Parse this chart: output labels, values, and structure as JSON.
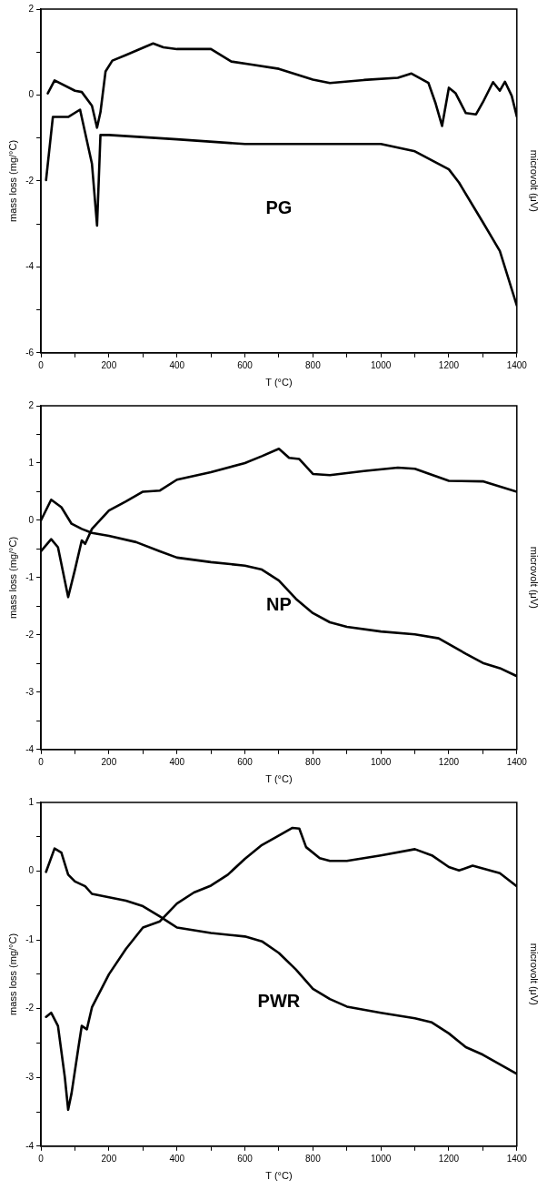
{
  "chart_data": [
    {
      "type": "line",
      "xlabel": "T (°C)",
      "ylabel": "mass loss (mg/°C)",
      "y2label": "microvolt (μV)",
      "annotations": [
        "PG"
      ],
      "xlim": [
        0,
        1400
      ],
      "ylim": [
        -6,
        2
      ],
      "xticks": [
        0,
        {
          "value": 100,
          "label": null
        },
        200,
        {
          "value": 300,
          "label": null
        },
        400,
        {
          "value": 500,
          "label": null
        },
        600,
        {
          "value": 700,
          "label": null
        },
        800,
        {
          "value": 900,
          "label": null
        },
        1000,
        {
          "value": 1100,
          "label": null
        },
        1200,
        {
          "value": 1300,
          "label": null
        },
        1400
      ],
      "yticks": [
        -6,
        {
          "value": -5,
          "label": null
        },
        -4,
        {
          "value": -3,
          "label": null
        },
        -2,
        {
          "value": -1,
          "label": null
        },
        0,
        {
          "value": 1,
          "label": null
        },
        2
      ],
      "grid": false,
      "legend": false,
      "marker": "none",
      "line_style": "solid",
      "series": [
        {
          "color": "#000000",
          "x": [
            20,
            40,
            100,
            120,
            150,
            165,
            175,
            190,
            210,
            250,
            300,
            330,
            360,
            400,
            500,
            560,
            620,
            700,
            800,
            850,
            950,
            1050,
            1090,
            1140,
            1160,
            1180,
            1200,
            1220,
            1250,
            1280,
            1300,
            1330,
            1350,
            1365,
            1385,
            1400
          ],
          "values": [
            0.04,
            0.34,
            0.1,
            0.07,
            -0.25,
            -0.76,
            -0.4,
            0.55,
            0.8,
            0.93,
            1.1,
            1.2,
            1.11,
            1.07,
            1.07,
            0.78,
            0.71,
            0.61,
            0.36,
            0.28,
            0.35,
            0.4,
            0.5,
            0.28,
            -0.17,
            -0.72,
            0.17,
            0.04,
            -0.42,
            -0.45,
            -0.17,
            0.3,
            0.1,
            0.31,
            -0.02,
            -0.5
          ]
        },
        {
          "color": "#000000",
          "x": [
            15,
            35,
            80,
            115,
            150,
            165,
            175,
            200,
            400,
            600,
            1000,
            1100,
            1200,
            1230,
            1300,
            1350,
            1400
          ],
          "values": [
            -1.98,
            -0.51,
            -0.51,
            -0.34,
            -1.6,
            -3.04,
            -0.93,
            -0.93,
            -1.03,
            -1.14,
            -1.14,
            -1.31,
            -1.73,
            -2.04,
            -2.96,
            -3.63,
            -4.9
          ]
        }
      ]
    },
    {
      "type": "line",
      "xlabel": "T (°C)",
      "ylabel": "mass loss (mg/°C)",
      "y2label": "microvolt (μV)",
      "annotations": [
        "NP"
      ],
      "xlim": [
        0,
        1400
      ],
      "ylim": [
        -4,
        2
      ],
      "xticks": [
        0,
        {
          "value": 100,
          "label": null
        },
        200,
        {
          "value": 300,
          "label": null
        },
        400,
        {
          "value": 500,
          "label": null
        },
        600,
        {
          "value": 700,
          "label": null
        },
        800,
        {
          "value": 900,
          "label": null
        },
        1000,
        {
          "value": 1100,
          "label": null
        },
        1200,
        {
          "value": 1300,
          "label": null
        },
        1400
      ],
      "yticks": [
        -4,
        {
          "value": -3.5,
          "label": null
        },
        -3,
        {
          "value": -2.5,
          "label": null
        },
        -2,
        {
          "value": -1.5,
          "label": null
        },
        -1,
        {
          "value": -0.5,
          "label": null
        },
        0,
        {
          "value": 0.5,
          "label": null
        },
        1,
        {
          "value": 1.5,
          "label": null
        },
        2
      ],
      "grid": false,
      "legend": false,
      "marker": "none",
      "line_style": "solid",
      "series": [
        {
          "color": "#000000",
          "x": [
            0,
            30,
            60,
            90,
            120,
            150,
            200,
            280,
            350,
            400,
            500,
            600,
            650,
            700,
            750,
            800,
            850,
            900,
            1000,
            1100,
            1170,
            1250,
            1300,
            1350,
            1400
          ],
          "values": [
            0.0,
            0.36,
            0.23,
            -0.06,
            -0.15,
            -0.22,
            -0.27,
            -0.38,
            -0.54,
            -0.65,
            -0.73,
            -0.79,
            -0.86,
            -1.05,
            -1.37,
            -1.62,
            -1.78,
            -1.86,
            -1.94,
            -1.99,
            -2.06,
            -2.33,
            -2.49,
            -2.58,
            -2.72
          ]
        },
        {
          "color": "#000000",
          "x": [
            0,
            30,
            50,
            80,
            100,
            120,
            130,
            150,
            200,
            250,
            300,
            350,
            400,
            500,
            600,
            650,
            700,
            730,
            760,
            800,
            850,
            950,
            1050,
            1100,
            1200,
            1300,
            1400
          ],
          "values": [
            -0.54,
            -0.33,
            -0.47,
            -1.34,
            -0.86,
            -0.35,
            -0.41,
            -0.15,
            0.17,
            0.33,
            0.5,
            0.52,
            0.71,
            0.84,
            1.0,
            1.12,
            1.25,
            1.09,
            1.07,
            0.81,
            0.79,
            0.86,
            0.92,
            0.9,
            0.69,
            0.68,
            0.5
          ]
        }
      ]
    },
    {
      "type": "line",
      "xlabel": "T (°C)",
      "ylabel": "mass loss (mg/°C)",
      "y2label": "microvolt (μV)",
      "annotations": [
        "PWR"
      ],
      "xlim": [
        0,
        1400
      ],
      "ylim": [
        -4,
        1
      ],
      "xticks": [
        0,
        {
          "value": 100,
          "label": null
        },
        200,
        {
          "value": 300,
          "label": null
        },
        400,
        {
          "value": 500,
          "label": null
        },
        600,
        {
          "value": 700,
          "label": null
        },
        800,
        {
          "value": 900,
          "label": null
        },
        1000,
        {
          "value": 1100,
          "label": null
        },
        1200,
        {
          "value": 1300,
          "label": null
        },
        1400
      ],
      "yticks": [
        -4,
        {
          "value": -3.5,
          "label": null
        },
        -3,
        {
          "value": -2.5,
          "label": null
        },
        -2,
        {
          "value": -1.5,
          "label": null
        },
        -1,
        {
          "value": -0.5,
          "label": null
        },
        0,
        {
          "value": 0.5,
          "label": null
        },
        1
      ],
      "grid": false,
      "legend": false,
      "marker": "none",
      "line_style": "solid",
      "series": [
        {
          "color": "#000000",
          "x": [
            15,
            40,
            60,
            80,
            100,
            130,
            150,
            200,
            250,
            300,
            350,
            400,
            500,
            600,
            650,
            700,
            750,
            800,
            850,
            900,
            1000,
            1100,
            1150,
            1200,
            1250,
            1300,
            1400
          ],
          "values": [
            -0.01,
            0.33,
            0.27,
            -0.05,
            -0.15,
            -0.22,
            -0.33,
            -0.38,
            -0.43,
            -0.51,
            -0.66,
            -0.82,
            -0.9,
            -0.95,
            -1.02,
            -1.19,
            -1.43,
            -1.71,
            -1.86,
            -1.97,
            -2.06,
            -2.14,
            -2.2,
            -2.36,
            -2.56,
            -2.67,
            -2.95
          ]
        },
        {
          "color": "#000000",
          "x": [
            15,
            30,
            50,
            70,
            80,
            90,
            110,
            120,
            135,
            150,
            200,
            250,
            300,
            350,
            400,
            450,
            500,
            550,
            600,
            650,
            700,
            740,
            760,
            780,
            820,
            850,
            900,
            1000,
            1100,
            1150,
            1200,
            1230,
            1270,
            1350,
            1400
          ],
          "values": [
            -2.12,
            -2.06,
            -2.25,
            -2.99,
            -3.47,
            -3.23,
            -2.57,
            -2.25,
            -2.3,
            -1.98,
            -1.5,
            -1.13,
            -0.82,
            -0.73,
            -0.47,
            -0.31,
            -0.21,
            -0.05,
            0.18,
            0.38,
            0.52,
            0.63,
            0.62,
            0.35,
            0.19,
            0.15,
            0.15,
            0.23,
            0.32,
            0.23,
            0.06,
            0.01,
            0.08,
            -0.03,
            -0.22
          ]
        }
      ]
    }
  ]
}
